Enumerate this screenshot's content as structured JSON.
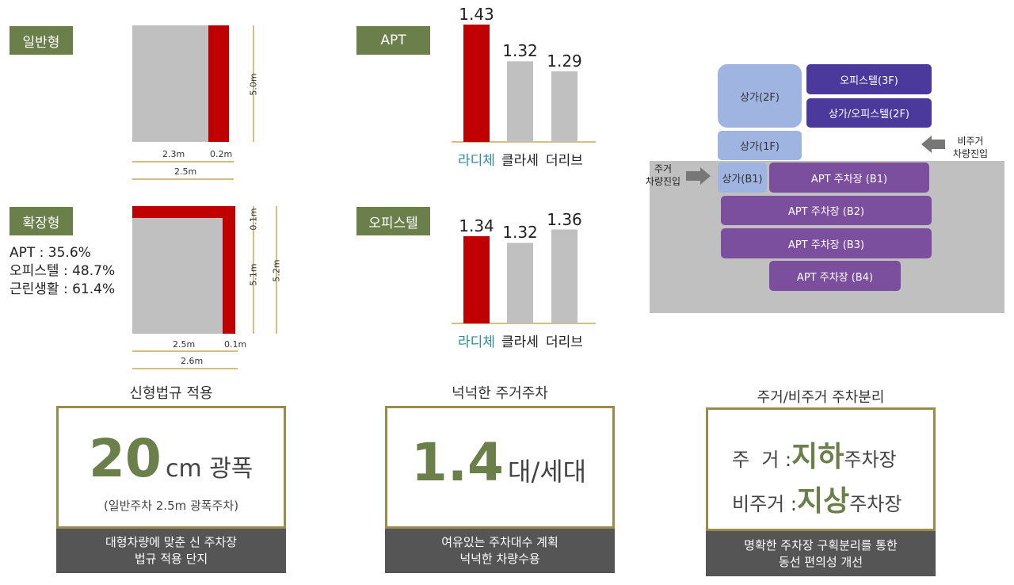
{
  "parking_size": {
    "standard": {
      "label": "일반형",
      "width": "2.3m",
      "extra": "0.2m",
      "total": "2.5m",
      "height": "5.0m"
    },
    "extended": {
      "label": "확장형",
      "width": "2.5m",
      "extra": "0.1m",
      "total": "2.6m",
      "top": "0.1m",
      "height": "5.1m",
      "total_height": "5.2m",
      "rates": [
        "APT : 35.6%",
        "오피스텔 : 48.7%",
        "근린생활 : 61.4%"
      ]
    }
  },
  "ratio_charts": [
    {
      "label": "APT",
      "categories": [
        "라디체",
        "클라세",
        "더리브"
      ],
      "values": [
        1.43,
        1.32,
        1.29
      ],
      "colors": [
        "#c00000",
        "#c0c0c0",
        "#c0c0c0"
      ]
    },
    {
      "label": "오피스텔",
      "categories": [
        "라디체",
        "클라세",
        "더리브"
      ],
      "values": [
        1.34,
        1.32,
        1.36
      ],
      "colors": [
        "#c00000",
        "#c0c0c0",
        "#c0c0c0"
      ]
    }
  ],
  "diagram": {
    "boxes": [
      "오피스텔(3F)",
      "상가/오피스텔(2F)",
      "상가(2F)",
      "상가(1F)",
      "상가(B1)",
      "APT 주차장 (B1)",
      "APT 주차장 (B2)",
      "APT 주차장 (B3)",
      "APT 주차장 (B4)"
    ],
    "resident_entry": [
      "주거",
      "차량진입"
    ],
    "nonresident_entry": [
      "비주거",
      "차량진입"
    ]
  },
  "cards": [
    {
      "title": "신형법규 적용",
      "number": "20",
      "unit": "cm 광폭",
      "note": "(일반주차 2.5m 광폭주차)",
      "footer": [
        "대형차량에 맞춘 신 주차장",
        "법규 적용 단지"
      ]
    },
    {
      "title": "넉넉한 주거주차",
      "number": "1.4",
      "unit": "대/세대",
      "footer": [
        "여유있는 주차대수 계획",
        "넉넉한 차량수용"
      ]
    },
    {
      "title": "주거/비주거 주차분리",
      "rows": [
        [
          "주  거 :",
          "지하",
          "주차장"
        ],
        [
          "비주거 :",
          "지상",
          "주차장"
        ]
      ],
      "footer": [
        "명확한 주차장 구획분리를 통한",
        "동선 편의성 개선"
      ]
    }
  ]
}
